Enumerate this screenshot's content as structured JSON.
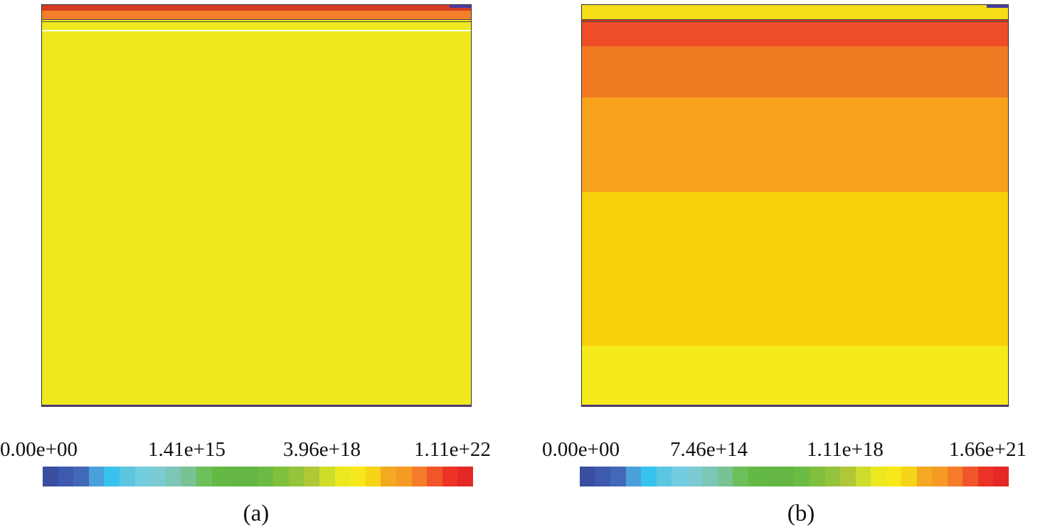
{
  "palette": [
    "#3b4fa0",
    "#3d5ab0",
    "#4468b8",
    "#4aa0d8",
    "#38c2ee",
    "#5cc6e0",
    "#72cde0",
    "#7ccad2",
    "#7cc6b8",
    "#78c294",
    "#6cbf5a",
    "#64b944",
    "#64b744",
    "#64b744",
    "#6cbb44",
    "#80c03c",
    "#94c43c",
    "#b0c838",
    "#cedc2c",
    "#ece820",
    "#f6e81a",
    "#f6d418",
    "#f5a821",
    "#f59a24",
    "#f47c2a",
    "#f0562a",
    "#ec3426",
    "#e42826"
  ],
  "panels": [
    {
      "id": "a",
      "sublabel": "(a)",
      "ticks": [
        "0.00e+00",
        "1.41e+15",
        "3.96e+18",
        "1.11e+22"
      ],
      "layers": [
        {
          "color": "#d63c24"
        },
        {
          "color": "#f37f2a"
        },
        {
          "color": "#efe81c"
        },
        {
          "color": "#efe81c"
        }
      ]
    },
    {
      "id": "b",
      "sublabel": "(b)",
      "ticks": [
        "0.00e+00",
        "7.46e+14",
        "1.11e+18",
        "1.66e+21"
      ],
      "layers": [
        {
          "color": "#f5dd18"
        },
        {
          "color": "#d8361e"
        },
        {
          "color": "#ee4d28"
        },
        {
          "color": "#f07b22"
        },
        {
          "color": "#f7a21d"
        },
        {
          "color": "#f9d00c"
        },
        {
          "color": "#f6ea1a"
        }
      ]
    }
  ]
}
